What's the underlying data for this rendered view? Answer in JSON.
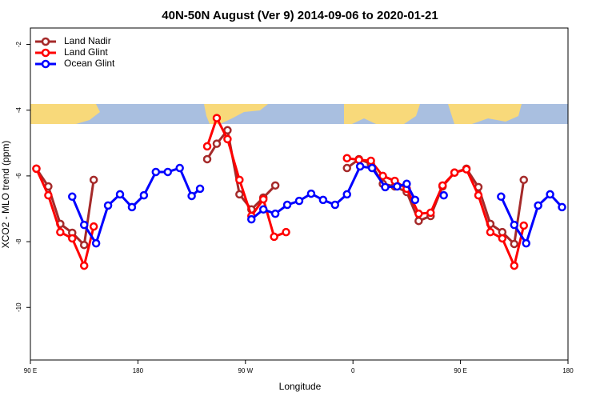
{
  "chart_data": {
    "type": "line",
    "title": "40N-50N August (Ver 9)   2014-09-06 to 2020-01-21",
    "x_label": "Longitude",
    "y_label": "XCO2 - MLO trend (ppm)",
    "xlim": [
      90,
      540
    ],
    "xticks": [
      {
        "value": 90,
        "label": "90 E"
      },
      180,
      {
        "value": 270,
        "label": "90 W"
      },
      {
        "value": 360,
        "label": "0"
      },
      {
        "value": 450,
        "label": "90 E"
      },
      {
        "value": 540,
        "label": "180"
      }
    ],
    "ylim": [
      -11.6,
      -1.5
    ],
    "yticks": [
      -2,
      -4,
      -6,
      -8,
      -10
    ],
    "legend": "top-left",
    "series": [
      {
        "name": "Land Nadir",
        "color": "#a52a2a",
        "x": [
          95,
          105,
          115,
          125,
          135,
          143,
          null,
          238,
          246,
          255,
          265,
          275,
          285,
          295,
          null,
          355,
          365,
          375,
          385,
          395,
          405,
          415,
          425,
          435,
          445,
          455,
          465,
          475,
          485,
          495,
          503
        ],
        "values": [
          -5.78,
          -6.32,
          -7.46,
          -7.73,
          -8.1,
          -6.12,
          null,
          -5.49,
          -5.02,
          -4.61,
          -6.56,
          -7.02,
          -6.66,
          -6.29,
          null,
          -5.76,
          -5.49,
          -5.63,
          -6.24,
          -6.32,
          -6.49,
          -7.37,
          -7.22,
          -6.32,
          -5.9,
          -5.78,
          -6.34,
          -7.46,
          -7.71,
          -8.07,
          -6.12
        ]
      },
      {
        "name": "Land Glint",
        "color": "#ff0000",
        "x": [
          95,
          105,
          115,
          125,
          135,
          143,
          null,
          238,
          246,
          255,
          265,
          275,
          285,
          294,
          304,
          null,
          355,
          365,
          375,
          385,
          395,
          405,
          415,
          425,
          435,
          445,
          455,
          465,
          475,
          485,
          495,
          503
        ],
        "values": [
          -5.78,
          -6.59,
          -7.71,
          -7.9,
          -8.73,
          -7.54,
          null,
          -5.1,
          -4.24,
          -4.88,
          -6.12,
          -7.22,
          -6.71,
          -7.85,
          -7.71,
          null,
          -5.46,
          -5.51,
          -5.54,
          -6.0,
          -6.15,
          -6.39,
          -7.15,
          -7.12,
          -6.29,
          -5.9,
          -5.8,
          -6.59,
          -7.71,
          -7.9,
          -8.73,
          -7.51
        ]
      },
      {
        "name": "Ocean Glint",
        "color": "#0000ff",
        "x": [
          125,
          135,
          145,
          155,
          165,
          175,
          185,
          195,
          205,
          215,
          225,
          232,
          null,
          275,
          285,
          295,
          305,
          315,
          325,
          335,
          345,
          355,
          366,
          376,
          387,
          397,
          405,
          412,
          null,
          436,
          null,
          484,
          495,
          505,
          515,
          525,
          535
        ],
        "values": [
          -6.63,
          -7.49,
          -8.05,
          -6.9,
          -6.56,
          -6.95,
          -6.59,
          -5.88,
          -5.88,
          -5.76,
          -6.61,
          -6.39,
          null,
          -7.32,
          -7.02,
          -7.15,
          -6.88,
          -6.76,
          -6.54,
          -6.73,
          -6.88,
          -6.56,
          -5.71,
          -5.76,
          -6.34,
          -6.32,
          -6.24,
          -6.73,
          null,
          -6.59,
          null,
          -6.63,
          -7.49,
          -8.05,
          -6.9,
          -6.56,
          -6.95
        ]
      }
    ]
  }
}
